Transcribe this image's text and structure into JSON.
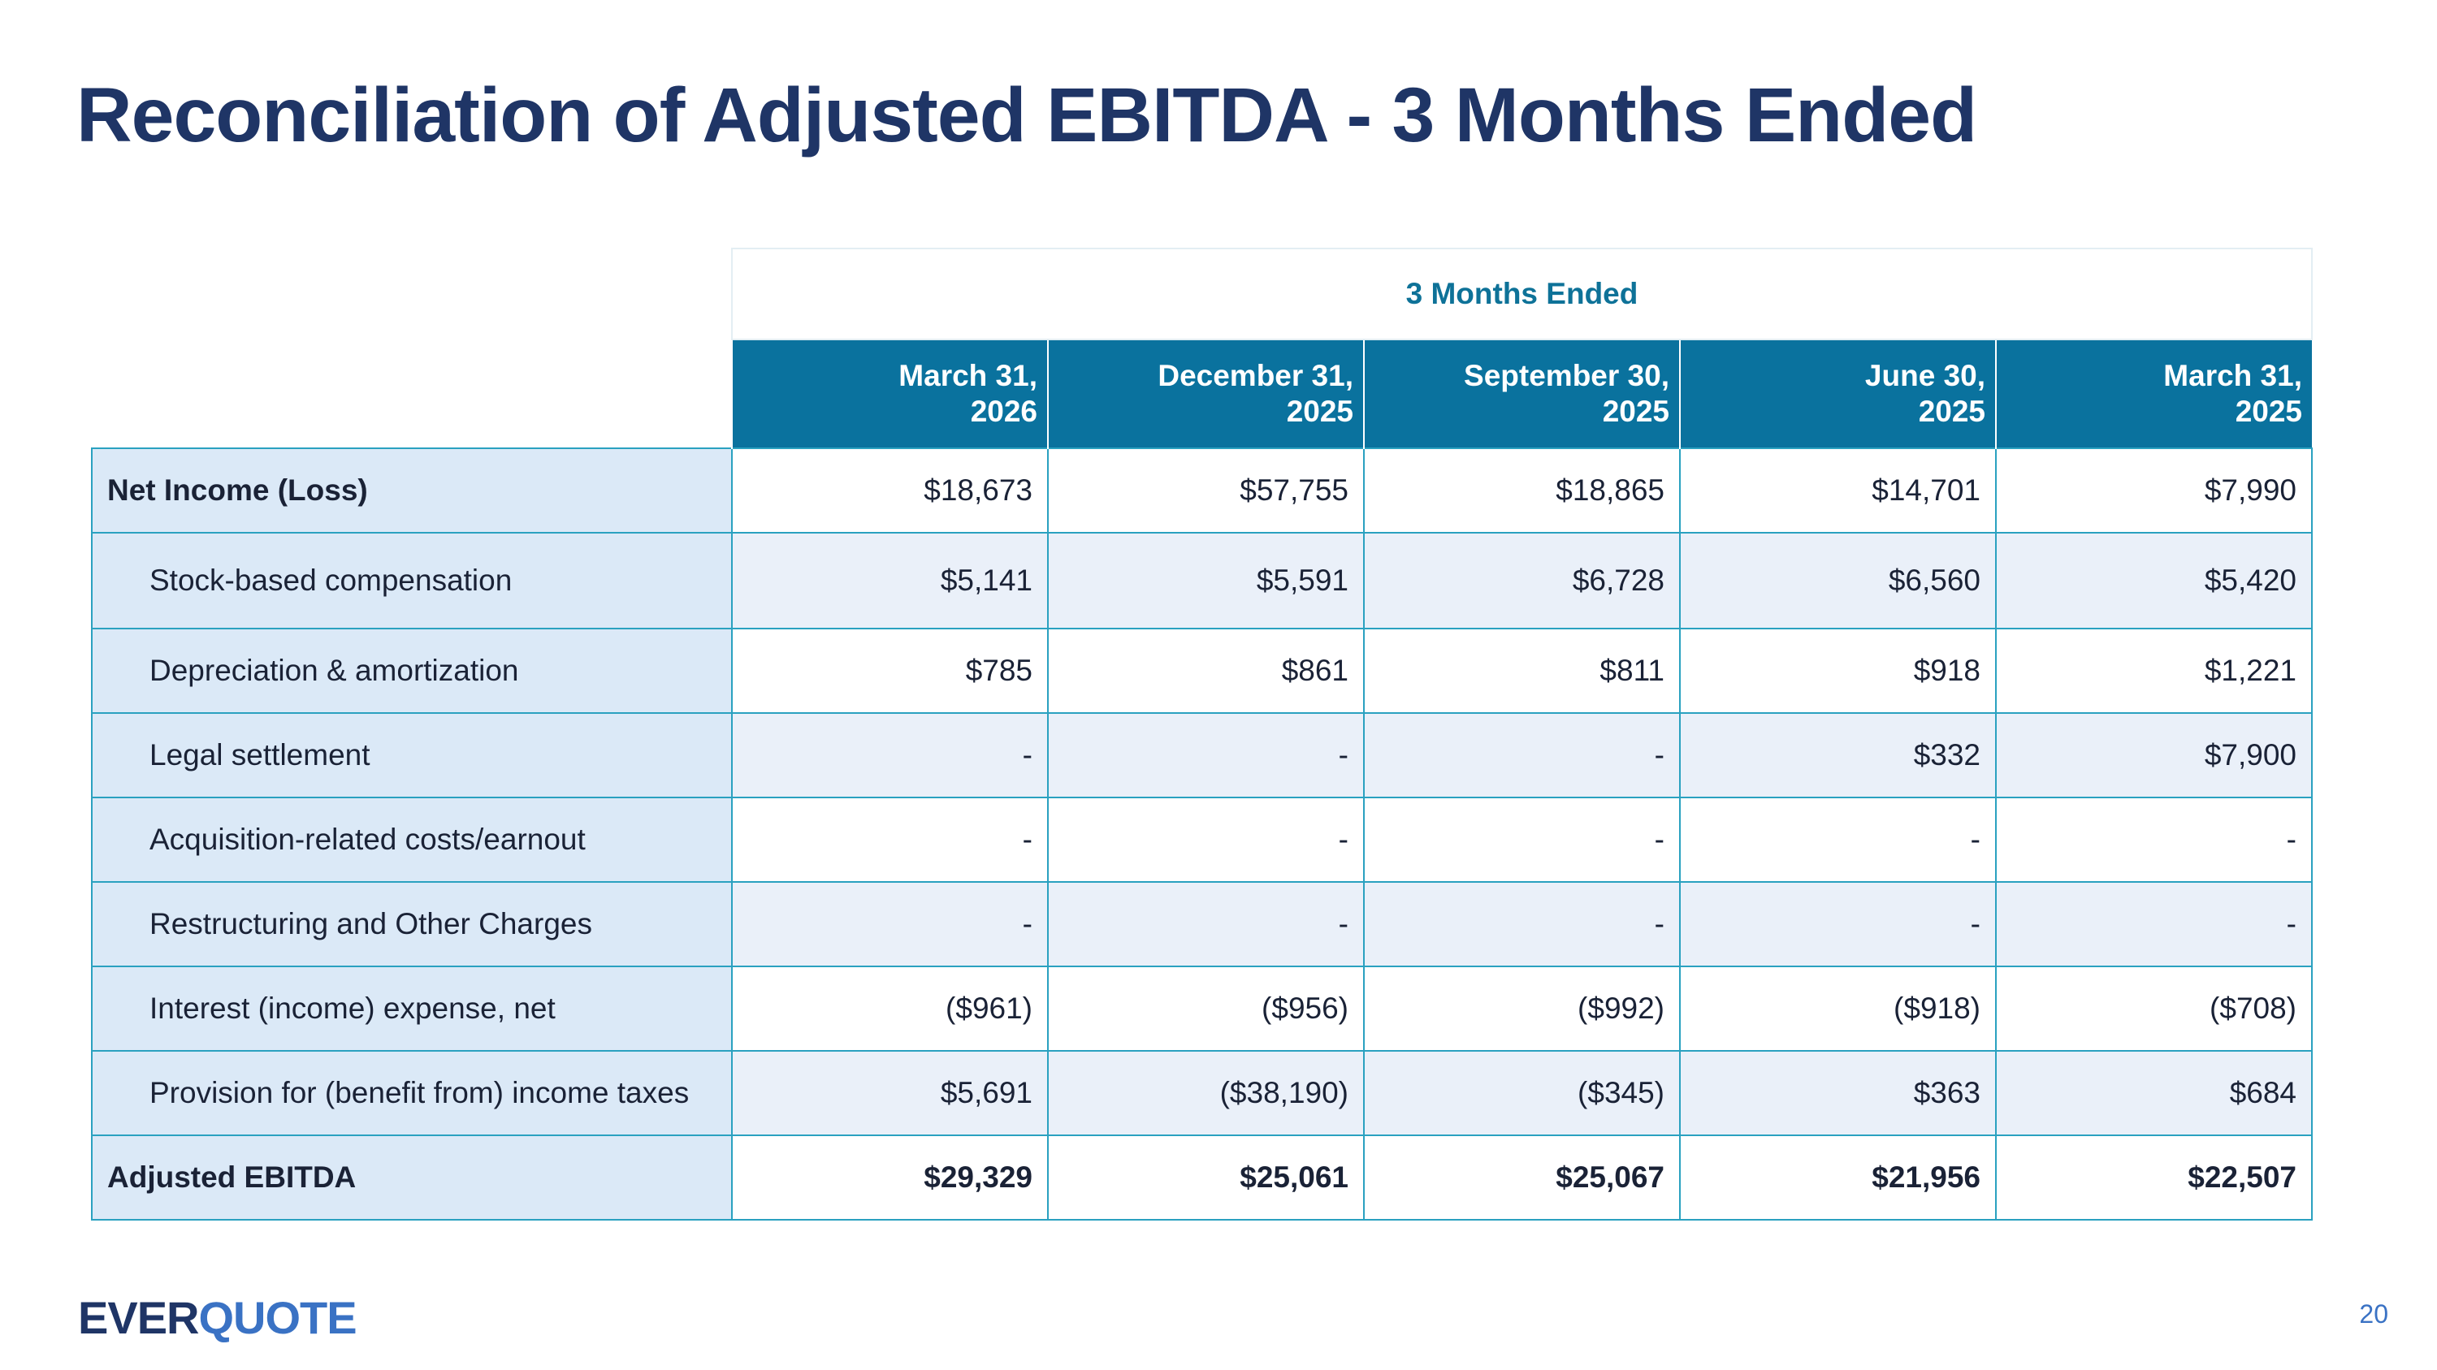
{
  "title": "Reconciliation of Adjusted EBITDA - 3 Months Ended",
  "table": {
    "group_header": "3 Months Ended",
    "columns": [
      {
        "line1": "March 31,",
        "line2": "2026"
      },
      {
        "line1": "December 31,",
        "line2": "2025"
      },
      {
        "line1": "September 30,",
        "line2": "2025"
      },
      {
        "line1": "June 30,",
        "line2": "2025"
      },
      {
        "line1": "March 31,",
        "line2": "2025"
      }
    ],
    "rows": [
      {
        "label": "Net Income (Loss)",
        "values": [
          "$18,673",
          "$57,755",
          "$18,865",
          "$14,701",
          "$7,990"
        ]
      },
      {
        "label": "Stock-based compensation",
        "values": [
          "$5,141",
          "$5,591",
          "$6,728",
          "$6,560",
          "$5,420"
        ]
      },
      {
        "label": "Depreciation & amortization",
        "values": [
          "$785",
          "$861",
          "$811",
          "$918",
          "$1,221"
        ]
      },
      {
        "label": "Legal settlement",
        "values": [
          "-",
          "-",
          "-",
          "$332",
          "$7,900"
        ]
      },
      {
        "label": "Acquisition-related costs/earnout",
        "values": [
          "-",
          "-",
          "-",
          "-",
          "-"
        ]
      },
      {
        "label": "Restructuring and Other Charges",
        "values": [
          "-",
          "-",
          "-",
          "-",
          "-"
        ]
      },
      {
        "label": "Interest (income) expense, net",
        "values": [
          "($961)",
          "($956)",
          "($992)",
          "($918)",
          "($708)"
        ]
      },
      {
        "label": "Provision for (benefit from) income taxes",
        "values": [
          "$5,691",
          "($38,190)",
          "($345)",
          "$363",
          "$684"
        ]
      },
      {
        "label": "Adjusted EBITDA",
        "values": [
          "$29,329",
          "$25,061",
          "$25,067",
          "$21,956",
          "$22,507"
        ]
      }
    ]
  },
  "footer": {
    "logo_part1": "EVER",
    "logo_part2": "QUOTE",
    "page_number": "20"
  }
}
